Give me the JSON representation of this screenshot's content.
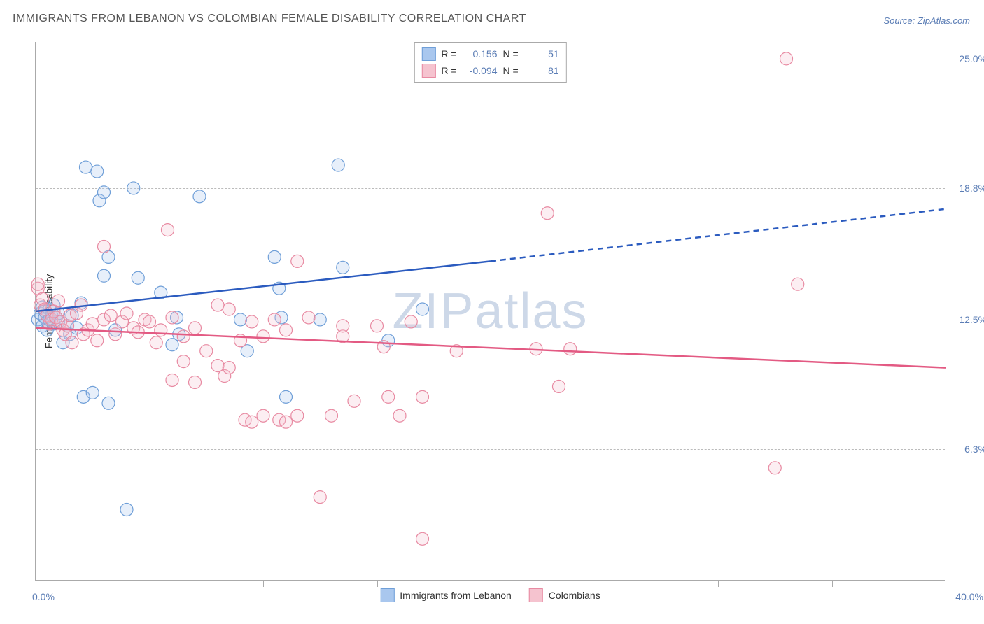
{
  "title": "IMMIGRANTS FROM LEBANON VS COLOMBIAN FEMALE DISABILITY CORRELATION CHART",
  "source": "Source: ZipAtlas.com",
  "watermark": "ZIPatlas",
  "chart": {
    "type": "scatter",
    "background_color": "#ffffff",
    "grid_color": "#bbbbbb",
    "axis_color": "#aaaaaa",
    "title_fontsize": 16,
    "title_color": "#555555",
    "label_fontsize": 14,
    "tick_label_color": "#5b7db5",
    "y_axis_title": "Female Disability",
    "xlim": [
      0,
      40
    ],
    "ylim": [
      0,
      25.8
    ],
    "x_tick_positions": [
      0,
      5,
      10,
      15,
      20,
      25,
      30,
      35,
      40
    ],
    "x_tick_labels_shown": {
      "min": "0.0%",
      "max": "40.0%"
    },
    "y_gridlines": [
      6.3,
      12.5,
      18.8,
      25.0
    ],
    "y_tick_labels": [
      "6.3%",
      "12.5%",
      "18.8%",
      "25.0%"
    ],
    "marker_style": "circle",
    "marker_radius": 9,
    "marker_fill_opacity": 0.28,
    "marker_stroke_width": 1.2,
    "line_width": 2.5,
    "series": [
      {
        "name": "Immigrants from Lebanon",
        "color_fill": "#a9c7ee",
        "color_stroke": "#6f9fd8",
        "line_color": "#2b5bbf",
        "R": 0.156,
        "N": 51,
        "trend": {
          "x1": 0,
          "y1": 12.9,
          "x2_solid": 20,
          "y2_solid": 15.3,
          "x2_dash": 40,
          "y2_dash": 17.8
        },
        "points": [
          [
            0.1,
            12.5
          ],
          [
            0.2,
            12.8
          ],
          [
            0.3,
            12.2
          ],
          [
            0.3,
            13.1
          ],
          [
            0.4,
            12.6
          ],
          [
            0.4,
            12.9
          ],
          [
            0.5,
            12.4
          ],
          [
            0.5,
            12.0
          ],
          [
            0.6,
            13.0
          ],
          [
            0.6,
            12.5
          ],
          [
            0.7,
            12.7
          ],
          [
            0.8,
            12.3
          ],
          [
            0.8,
            13.2
          ],
          [
            0.9,
            12.6
          ],
          [
            1.0,
            12.4
          ],
          [
            1.0,
            12.8
          ],
          [
            1.2,
            11.4
          ],
          [
            1.4,
            12.2
          ],
          [
            1.5,
            11.8
          ],
          [
            1.6,
            12.7
          ],
          [
            1.8,
            12.1
          ],
          [
            2.0,
            13.3
          ],
          [
            2.1,
            8.8
          ],
          [
            2.2,
            19.8
          ],
          [
            2.5,
            9.0
          ],
          [
            2.7,
            19.6
          ],
          [
            2.8,
            18.2
          ],
          [
            3.0,
            14.6
          ],
          [
            3.0,
            18.6
          ],
          [
            3.2,
            8.5
          ],
          [
            3.2,
            15.5
          ],
          [
            3.5,
            12.0
          ],
          [
            4.0,
            3.4
          ],
          [
            4.3,
            18.8
          ],
          [
            4.5,
            14.5
          ],
          [
            5.5,
            13.8
          ],
          [
            6.0,
            11.3
          ],
          [
            6.2,
            12.6
          ],
          [
            6.3,
            11.8
          ],
          [
            7.2,
            18.4
          ],
          [
            9.0,
            12.5
          ],
          [
            9.3,
            11.0
          ],
          [
            10.5,
            15.5
          ],
          [
            10.7,
            14.0
          ],
          [
            10.8,
            12.6
          ],
          [
            11.0,
            8.8
          ],
          [
            12.5,
            12.5
          ],
          [
            13.3,
            19.9
          ],
          [
            13.5,
            15.0
          ],
          [
            15.5,
            11.5
          ],
          [
            17.0,
            13.0
          ]
        ]
      },
      {
        "name": "Colombians",
        "color_fill": "#f5c3cf",
        "color_stroke": "#e88aa2",
        "line_color": "#e35a83",
        "R": -0.094,
        "N": 81,
        "trend": {
          "x1": 0,
          "y1": 12.1,
          "x2_solid": 40,
          "y2_solid": 10.2,
          "x2_dash": 40,
          "y2_dash": 10.2
        },
        "points": [
          [
            0.1,
            14.0
          ],
          [
            0.1,
            14.2
          ],
          [
            0.2,
            13.2
          ],
          [
            0.3,
            13.5
          ],
          [
            0.4,
            13.0
          ],
          [
            0.5,
            12.7
          ],
          [
            0.6,
            12.3
          ],
          [
            0.7,
            12.5
          ],
          [
            0.8,
            12.9
          ],
          [
            0.9,
            12.6
          ],
          [
            1.0,
            13.4
          ],
          [
            1.1,
            12.4
          ],
          [
            1.2,
            12.0
          ],
          [
            1.3,
            11.8
          ],
          [
            1.4,
            12.2
          ],
          [
            1.5,
            12.7
          ],
          [
            1.6,
            11.4
          ],
          [
            1.8,
            12.8
          ],
          [
            2.0,
            13.2
          ],
          [
            2.1,
            11.8
          ],
          [
            2.3,
            12.0
          ],
          [
            2.5,
            12.3
          ],
          [
            2.7,
            11.5
          ],
          [
            3.0,
            12.5
          ],
          [
            3.0,
            16.0
          ],
          [
            3.3,
            12.7
          ],
          [
            3.5,
            11.8
          ],
          [
            3.8,
            12.4
          ],
          [
            4.0,
            12.8
          ],
          [
            4.3,
            12.1
          ],
          [
            4.5,
            11.9
          ],
          [
            4.8,
            12.5
          ],
          [
            5.0,
            12.4
          ],
          [
            5.3,
            11.4
          ],
          [
            5.5,
            12.0
          ],
          [
            5.8,
            16.8
          ],
          [
            6.0,
            12.6
          ],
          [
            6.0,
            9.6
          ],
          [
            6.5,
            11.7
          ],
          [
            6.5,
            10.5
          ],
          [
            7.0,
            12.1
          ],
          [
            7.0,
            9.5
          ],
          [
            7.5,
            11.0
          ],
          [
            8.0,
            10.3
          ],
          [
            8.0,
            13.2
          ],
          [
            8.3,
            9.8
          ],
          [
            8.5,
            13.0
          ],
          [
            8.5,
            10.2
          ],
          [
            9.0,
            11.5
          ],
          [
            9.2,
            7.7
          ],
          [
            9.5,
            7.6
          ],
          [
            9.5,
            12.4
          ],
          [
            10.0,
            7.9
          ],
          [
            10.0,
            11.7
          ],
          [
            10.5,
            12.5
          ],
          [
            10.7,
            7.7
          ],
          [
            11.0,
            7.6
          ],
          [
            11.0,
            12.0
          ],
          [
            11.5,
            7.9
          ],
          [
            11.5,
            15.3
          ],
          [
            12.0,
            12.6
          ],
          [
            12.5,
            4.0
          ],
          [
            13.0,
            7.9
          ],
          [
            13.5,
            11.7
          ],
          [
            13.5,
            12.2
          ],
          [
            14.0,
            8.6
          ],
          [
            15.0,
            12.2
          ],
          [
            15.3,
            11.2
          ],
          [
            15.5,
            8.8
          ],
          [
            16.0,
            7.9
          ],
          [
            16.5,
            12.4
          ],
          [
            17.0,
            8.8
          ],
          [
            17.0,
            2.0
          ],
          [
            18.5,
            11.0
          ],
          [
            22.0,
            11.1
          ],
          [
            22.5,
            17.6
          ],
          [
            23.0,
            9.3
          ],
          [
            23.5,
            11.1
          ],
          [
            32.5,
            5.4
          ],
          [
            33.0,
            25.0
          ],
          [
            33.5,
            14.2
          ]
        ]
      }
    ]
  },
  "legend_labels": {
    "series1": "Immigrants from Lebanon",
    "series2": "Colombians",
    "R_prefix": "R =",
    "N_prefix": "N ="
  }
}
